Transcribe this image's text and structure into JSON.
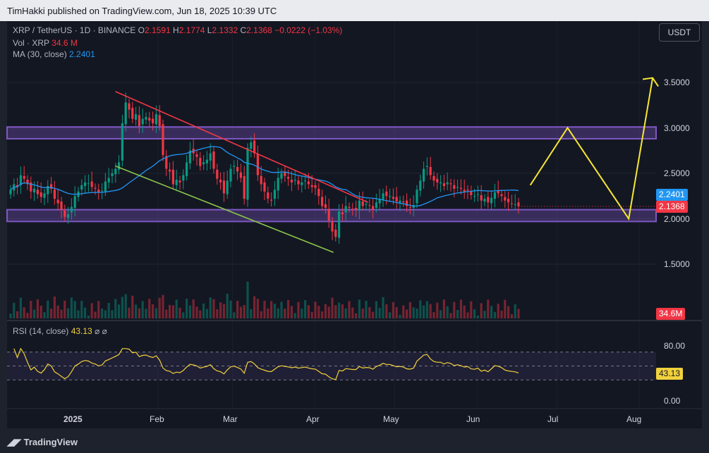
{
  "header": {
    "published": "TimHakki published on TradingView.com, Jun 18, 2025 10:39 UTC"
  },
  "symbol": {
    "title": "XRP / TetherUS · 1D · BINANCE",
    "o_label": "O",
    "o": "2.1591",
    "h_label": "H",
    "h": "2.1774",
    "l_label": "L",
    "l": "2.1332",
    "c_label": "C",
    "c": "2.1368",
    "change": "−0.0222 (−1.03%)"
  },
  "volume": {
    "label": "Vol · XRP",
    "value": "34.6 M",
    "tag": "34.6M"
  },
  "ma": {
    "label": "MA (30, close)",
    "value": "2.2401"
  },
  "rsi": {
    "label": "RSI (14, close)",
    "value": "43.13",
    "icons": [
      "⌀",
      "⌀"
    ],
    "ticks": [
      "80.00",
      "0.00"
    ]
  },
  "currency_button": "USDT",
  "brand": "TradingView",
  "colors": {
    "up": "#089981",
    "down": "#f23645",
    "ma": "#2196f3",
    "rsi": "#f2d13c",
    "zone": "#7e57c2",
    "resistance_line": "#f23645",
    "support_line": "#8bc34a",
    "projection": "#f7e733"
  },
  "chart_data": {
    "type": "candlestick",
    "symbol": "XRP / TetherUS",
    "interval": "1D",
    "price_axis": {
      "ticks": [
        3.5,
        3.0,
        2.5,
        2.0,
        1.5
      ],
      "tick_labels": [
        "3.5000",
        "3.0000",
        "2.5000",
        "2.0000",
        "1.5000"
      ]
    },
    "time_axis": {
      "labels": [
        "2025",
        "Feb",
        "Mar",
        "Apr",
        "May",
        "Jun",
        "Jul",
        "Aug"
      ]
    },
    "last_price": 2.1368,
    "last_price_label": "2.1368",
    "ma_30_last": 2.2401,
    "ma_30_label": "2.2401",
    "zones": [
      {
        "from": 2.88,
        "to": 3.01
      },
      {
        "from": 1.97,
        "to": 2.1
      }
    ],
    "trendlines": [
      {
        "name": "resistance",
        "points": [
          [
            "2025-01-16",
            3.4
          ],
          [
            "2025-04-21",
            2.18
          ]
        ]
      },
      {
        "name": "support",
        "points": [
          [
            "2025-01-16",
            2.58
          ],
          [
            "2025-04-08",
            1.63
          ]
        ]
      }
    ],
    "projection": [
      [
        "2025-06-21",
        2.37
      ],
      [
        "2025-07-05",
        3.0
      ],
      [
        "2025-07-28",
        2.0
      ],
      [
        "2025-08-06",
        3.55
      ]
    ],
    "closes": [
      2.32,
      2.38,
      2.35,
      2.48,
      2.44,
      2.38,
      2.3,
      2.33,
      2.27,
      2.24,
      2.28,
      2.36,
      2.33,
      2.22,
      2.17,
      2.1,
      2.02,
      2.05,
      2.13,
      2.25,
      2.3,
      2.37,
      2.4,
      2.39,
      2.35,
      2.33,
      2.29,
      2.31,
      2.41,
      2.45,
      2.5,
      2.55,
      2.62,
      3.05,
      3.28,
      3.2,
      3.1,
      3.15,
      3.02,
      3.1,
      3.12,
      3.08,
      3.05,
      3.15,
      3.02,
      2.7,
      2.55,
      2.52,
      2.38,
      2.43,
      2.4,
      2.48,
      2.62,
      2.75,
      2.72,
      2.68,
      2.58,
      2.62,
      2.65,
      2.72,
      2.55,
      2.44,
      2.4,
      2.28,
      2.42,
      2.55,
      2.58,
      2.52,
      2.45,
      2.22,
      2.78,
      2.84,
      2.72,
      2.48,
      2.38,
      2.3,
      2.22,
      2.2,
      2.32,
      2.45,
      2.5,
      2.47,
      2.44,
      2.4,
      2.43,
      2.38,
      2.4,
      2.42,
      2.38,
      2.35,
      2.34,
      2.25,
      2.14,
      2.12,
      1.98,
      1.86,
      1.8,
      2.08,
      2.05,
      2.14,
      2.12,
      2.1,
      2.1,
      2.2,
      2.14,
      2.16,
      2.15,
      2.1,
      2.18,
      2.22,
      2.28,
      2.25,
      2.25,
      2.22,
      2.19,
      2.2,
      2.18,
      2.14,
      2.13,
      2.15,
      2.32,
      2.42,
      2.55,
      2.58,
      2.48,
      2.42,
      2.4,
      2.4,
      2.36,
      2.4,
      2.38,
      2.33,
      2.35,
      2.33,
      2.3,
      2.31,
      2.26,
      2.25,
      2.27,
      2.2,
      2.22,
      2.18,
      2.23,
      2.29,
      2.28,
      2.25,
      2.2,
      2.18,
      2.17,
      2.16,
      2.1368
    ],
    "volume_series_label": "Vol · XRP",
    "ma_series_label": "MA (30, close)",
    "rsi_series_label": "RSI (14, close)",
    "rsi_levels": [
      70,
      50,
      30
    ],
    "rsi_last": 43.13
  }
}
